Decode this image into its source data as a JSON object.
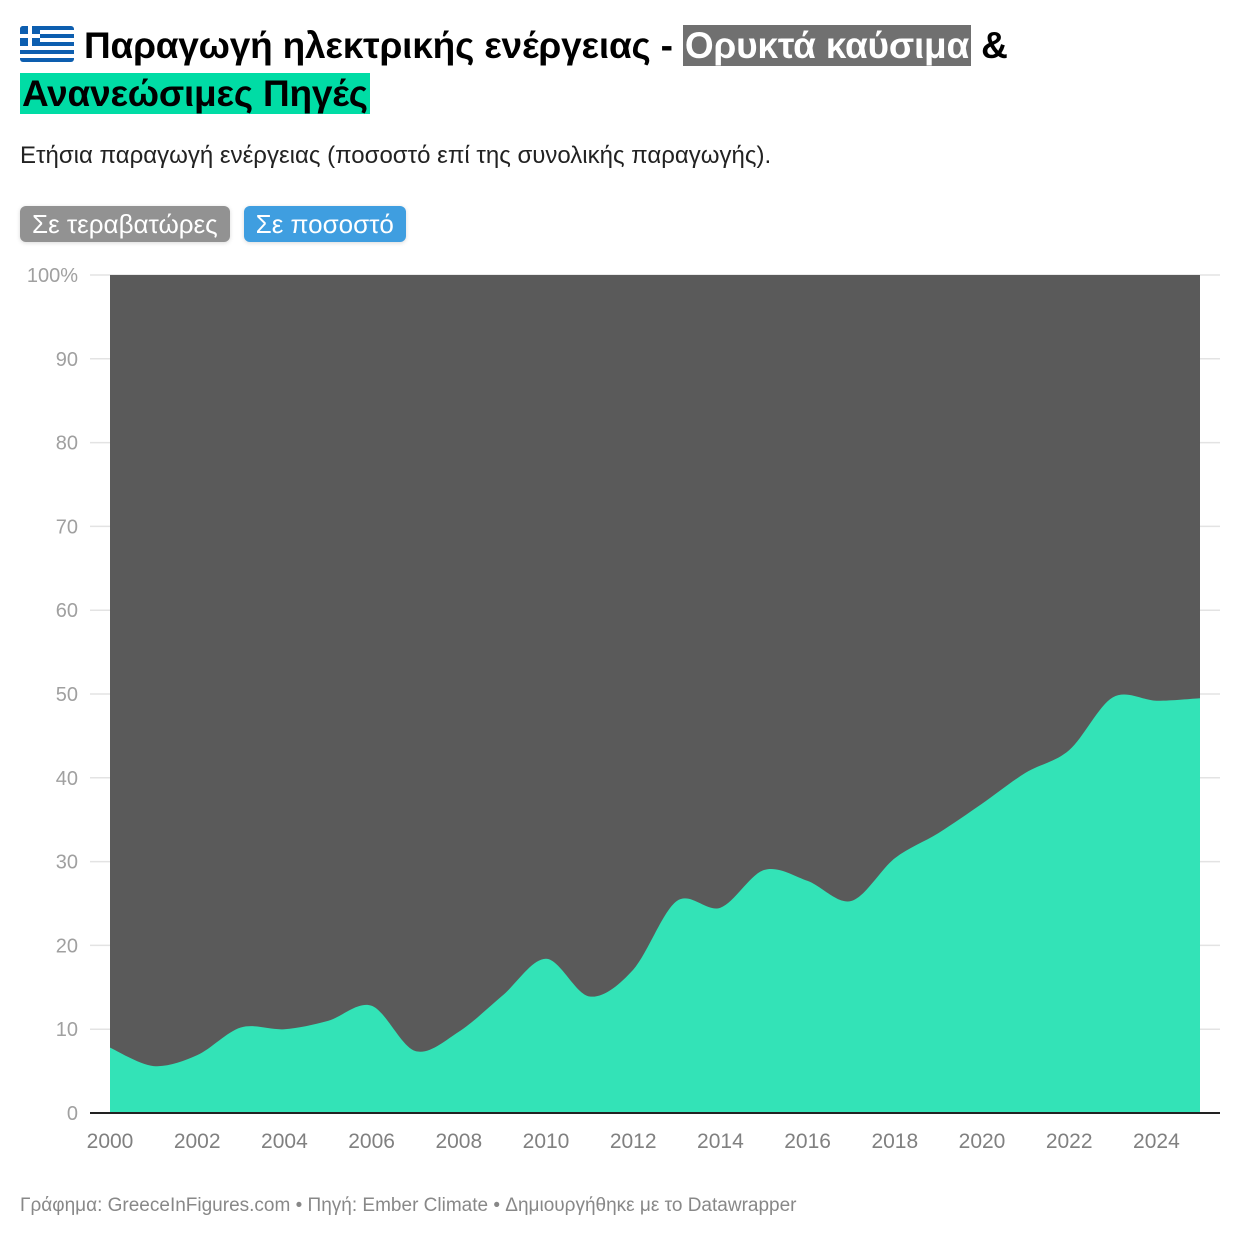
{
  "header": {
    "flag_icon": "greece-flag-icon",
    "title_part1": "Παραγωγή ηλεκτρικής ενέργειας - ",
    "title_fossil": "Ορυκτά καύσιμα",
    "title_amp": " &",
    "title_renew": "Ανανεώσιμες Πηγές",
    "subtitle": "Ετήσια παραγωγή ενέργειας (ποσοστό επί της συνολικής παραγωγής)."
  },
  "toggles": [
    {
      "label": "Σε τεραβατώρες",
      "active": false
    },
    {
      "label": "Σε ποσοστό",
      "active": true
    }
  ],
  "colors": {
    "fossil": "#5a5a5a",
    "renewables": "#33e3b7",
    "title_fossil_bg": "#707070",
    "title_renew_bg": "#00dca5",
    "toggle_active": "#3f9ee0",
    "toggle_inactive": "#929292"
  },
  "footer": {
    "text": "Γράφημα: GreeceInFigures.com • Πηγή: Ember Climate • Δημιουργήθηκε με το Datawrapper"
  },
  "chart_data": {
    "type": "area",
    "stacked": true,
    "normalized": true,
    "title": "Παραγωγή ηλεκτρικής ενέργειας - Ορυκτά καύσιμα & Ανανεώσιμες Πηγές",
    "subtitle": "Ετήσια παραγωγή ενέργειας (ποσοστό επί της συνολικής παραγωγής).",
    "xlabel": "",
    "ylabel": "",
    "x": [
      2000,
      2001,
      2002,
      2003,
      2004,
      2005,
      2006,
      2007,
      2008,
      2009,
      2010,
      2011,
      2012,
      2013,
      2014,
      2015,
      2016,
      2017,
      2018,
      2019,
      2020,
      2021,
      2022,
      2023,
      2024,
      2025
    ],
    "series": [
      {
        "name": "Ανανεώσιμες Πηγές",
        "color": "#33e3b7",
        "values": [
          7.8,
          5.6,
          6.9,
          10.2,
          10.0,
          11.0,
          12.8,
          7.4,
          9.7,
          14.0,
          18.4,
          13.9,
          17.1,
          25.3,
          24.5,
          29.0,
          27.7,
          25.3,
          30.4,
          33.4,
          36.9,
          40.6,
          43.3,
          49.6,
          49.2,
          49.5
        ]
      },
      {
        "name": "Ορυκτά καύσιμα",
        "color": "#5a5a5a",
        "values": [
          92.2,
          94.4,
          93.1,
          89.8,
          90.0,
          89.0,
          87.2,
          92.6,
          90.3,
          86.0,
          81.6,
          86.1,
          82.9,
          74.7,
          75.5,
          71.0,
          72.3,
          74.7,
          69.6,
          66.6,
          63.1,
          59.4,
          56.7,
          50.4,
          50.8,
          50.5
        ]
      }
    ],
    "y_ticks": [
      "0",
      "10",
      "20",
      "30",
      "40",
      "50",
      "60",
      "70",
      "80",
      "90",
      "100%"
    ],
    "x_ticks": [
      "2000",
      "2002",
      "2004",
      "2006",
      "2008",
      "2010",
      "2012",
      "2014",
      "2016",
      "2018",
      "2020",
      "2022",
      "2024"
    ],
    "ylim": [
      0,
      100
    ],
    "xlim": [
      2000,
      2025
    ],
    "grid": true,
    "legend": "inline title highlights"
  }
}
